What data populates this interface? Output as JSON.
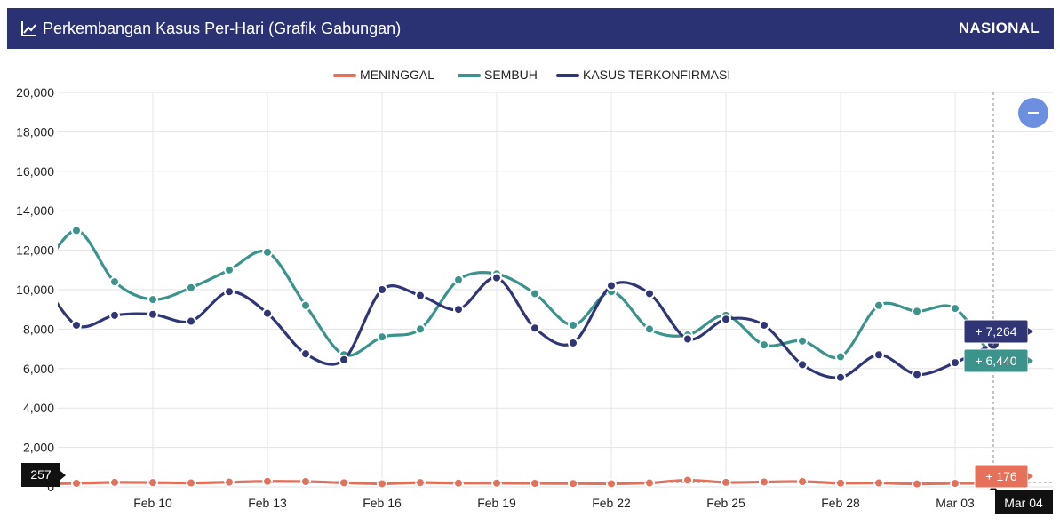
{
  "header": {
    "title": "Perkembangan Kasus Per-Hari (Grafik Gabungan)",
    "scope": "NASIONAL",
    "icon": "trend-chart-icon"
  },
  "colors": {
    "header_bg": "#2a3273",
    "meninggal": "#e5715a",
    "sembuh": "#3b938b",
    "kasus": "#2f3575",
    "reset_button": "#6d8fe0"
  },
  "chart_data": {
    "type": "line",
    "x": [
      "Feb 07",
      "Feb 08",
      "Feb 09",
      "Feb 10",
      "Feb 11",
      "Feb 12",
      "Feb 13",
      "Feb 14",
      "Feb 15",
      "Feb 16",
      "Feb 17",
      "Feb 18",
      "Feb 19",
      "Feb 20",
      "Feb 21",
      "Feb 22",
      "Feb 23",
      "Feb 24",
      "Feb 25",
      "Feb 26",
      "Feb 27",
      "Feb 28",
      "Mar 01",
      "Mar 02",
      "Mar 03",
      "Mar 04"
    ],
    "xticks": [
      "Feb 10",
      "Feb 13",
      "Feb 16",
      "Feb 19",
      "Feb 22",
      "Feb 25",
      "Feb 28",
      "Mar 03"
    ],
    "yticks": [
      "0",
      "2,000",
      "4,000",
      "6,000",
      "8,000",
      "10,000",
      "12,000",
      "14,000",
      "16,000",
      "18,000",
      "20,000"
    ],
    "ylim": [
      0,
      20000
    ],
    "grid": true,
    "legend_position": "top-center",
    "series": [
      {
        "name": "MENINGGAL",
        "values": [
          150,
          180,
          230,
          220,
          200,
          240,
          280,
          270,
          210,
          160,
          220,
          190,
          190,
          180,
          170,
          160,
          200,
          340,
          230,
          250,
          270,
          190,
          200,
          150,
          180,
          176
        ]
      },
      {
        "name": "SEMBUH",
        "values": [
          10600,
          13000,
          10400,
          9500,
          10100,
          11000,
          11900,
          9200,
          6700,
          7600,
          8000,
          10500,
          10800,
          9800,
          8200,
          9900,
          8000,
          7700,
          8700,
          7200,
          7400,
          6600,
          9200,
          8900,
          9050,
          6440
        ]
      },
      {
        "name": "KASUS TERKONFIRMASI",
        "values": [
          10800,
          8200,
          8700,
          8750,
          8400,
          9900,
          8800,
          6750,
          6450,
          10000,
          9700,
          9000,
          10600,
          8050,
          7300,
          10200,
          9800,
          7500,
          8500,
          8200,
          6200,
          5550,
          6700,
          5700,
          6300,
          7264
        ]
      }
    ],
    "tooltips": {
      "kasus": "+ 7,264",
      "sembuh": "+ 6,440",
      "meninggal": "+ 176",
      "crosshair_x": "Mar 04",
      "crosshair_y": "257"
    }
  }
}
